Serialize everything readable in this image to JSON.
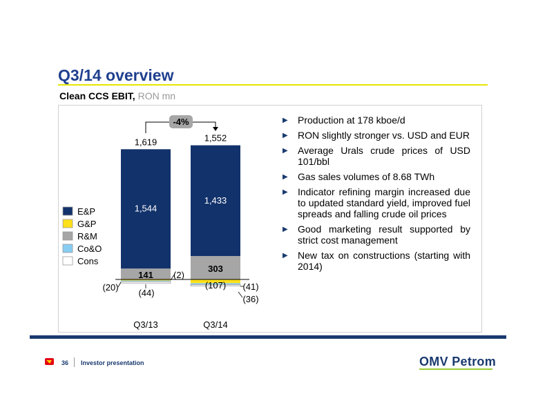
{
  "slide": {
    "title": "Q3/14 overview",
    "subtitle": "Clean CCS EBIT,",
    "unit": "RON mn",
    "page_number": "36",
    "footer_label": "Investor presentation",
    "brand": "OMV Petrom"
  },
  "bullets": [
    "Production at 178 kboe/d",
    "RON slightly stronger vs. USD and EUR",
    "Average Urals crude prices of USD 101/bbl",
    "Gas sales volumes of 8.68 TWh",
    "Indicator refining margin increased due to updated standard yield, improved fuel spreads and falling crude oil prices",
    "Good marketing result supported by strict cost management",
    "New tax on constructions (starting with 2014)"
  ],
  "chart_data": {
    "type": "bar",
    "stacked": true,
    "categories": [
      "Q3/13",
      "Q3/14"
    ],
    "totals": [
      1619,
      1552
    ],
    "total_labels": [
      "1,619",
      "1,552"
    ],
    "change_label": "-4%",
    "series": [
      {
        "name": "E&P",
        "color": "#12326b",
        "values": [
          1544,
          1433
        ],
        "labels": [
          "1,544",
          "1,433"
        ]
      },
      {
        "name": "G&P",
        "color": "#ffe01a",
        "values": [
          -2,
          -107
        ],
        "labels": [
          "(2)",
          "(107)"
        ]
      },
      {
        "name": "R&M",
        "color": "#a6a6a6",
        "values": [
          141,
          303
        ],
        "labels": [
          "141",
          "303"
        ]
      },
      {
        "name": "Co&O",
        "color": "#87cdf2",
        "values": [
          -20,
          -41
        ],
        "labels": [
          "(20)",
          "(41)"
        ]
      },
      {
        "name": "Cons",
        "color": "#ffffff",
        "values": [
          -44,
          -36
        ],
        "labels": [
          "(44)",
          "(36)"
        ]
      }
    ]
  }
}
